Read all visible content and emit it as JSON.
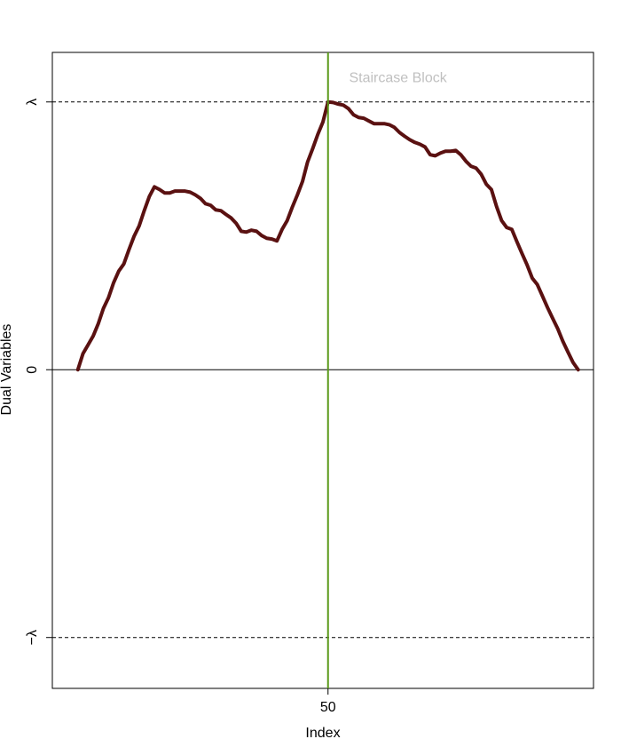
{
  "chart_data": {
    "type": "line",
    "xlabel": "Index",
    "ylabel": "Dual Variables",
    "x": [
      1,
      2,
      3,
      4,
      5,
      6,
      7,
      8,
      9,
      10,
      11,
      12,
      13,
      14,
      15,
      16,
      17,
      18,
      19,
      20,
      21,
      22,
      23,
      24,
      25,
      26,
      27,
      28,
      29,
      30,
      31,
      32,
      33,
      34,
      35,
      36,
      37,
      38,
      39,
      40,
      41,
      42,
      43,
      44,
      45,
      46,
      47,
      48,
      49,
      50,
      51,
      52,
      53,
      54,
      55,
      56,
      57,
      58,
      59,
      60,
      61,
      62,
      63,
      64,
      65,
      66,
      67,
      68,
      69,
      70,
      71,
      72,
      73,
      74,
      75,
      76,
      77,
      78,
      79,
      80,
      81,
      82,
      83,
      84,
      85,
      86,
      87,
      88,
      89,
      90,
      91,
      92,
      93,
      94,
      95,
      96,
      97,
      98,
      99
    ],
    "series": [
      {
        "color": "#5a1111",
        "values": [
          0,
          0.06,
          0.093,
          0.126,
          0.172,
          0.229,
          0.269,
          0.325,
          0.368,
          0.395,
          0.448,
          0.498,
          0.537,
          0.594,
          0.647,
          0.683,
          0.673,
          0.66,
          0.66,
          0.667,
          0.667,
          0.667,
          0.663,
          0.653,
          0.64,
          0.62,
          0.614,
          0.597,
          0.594,
          0.58,
          0.567,
          0.547,
          0.517,
          0.514,
          0.521,
          0.517,
          0.501,
          0.491,
          0.488,
          0.481,
          0.524,
          0.557,
          0.607,
          0.653,
          0.703,
          0.776,
          0.826,
          0.879,
          0.925,
          1,
          0.998,
          0.992,
          0.988,
          0.975,
          0.952,
          0.942,
          0.939,
          0.929,
          0.919,
          0.919,
          0.919,
          0.915,
          0.905,
          0.886,
          0.872,
          0.859,
          0.849,
          0.842,
          0.832,
          0.803,
          0.799,
          0.809,
          0.816,
          0.816,
          0.819,
          0.803,
          0.779,
          0.76,
          0.753,
          0.73,
          0.693,
          0.673,
          0.61,
          0.557,
          0.531,
          0.524,
          0.478,
          0.434,
          0.391,
          0.342,
          0.318,
          0.275,
          0.232,
          0.192,
          0.153,
          0.106,
          0.066,
          0.027,
          0
        ]
      }
    ],
    "xlim": [
      -4,
      102
    ],
    "xticks": [
      50
    ],
    "ylim": [
      -1.19,
      1.185
    ],
    "yticks": [
      {
        "value": -1,
        "label": "−λ"
      },
      0,
      {
        "value": 1,
        "label": "λ"
      }
    ],
    "hlines": [
      {
        "value": 1,
        "dashed": true
      },
      {
        "value": 0,
        "dashed": false
      },
      {
        "value": -1,
        "dashed": true
      }
    ],
    "vlines": [
      {
        "value": 50,
        "color": "#5b9a1b"
      }
    ],
    "annotations": [
      {
        "text": "Staircase Block",
        "x": 63.7,
        "y": 1.088,
        "color": "#c0c0c0"
      }
    ]
  }
}
